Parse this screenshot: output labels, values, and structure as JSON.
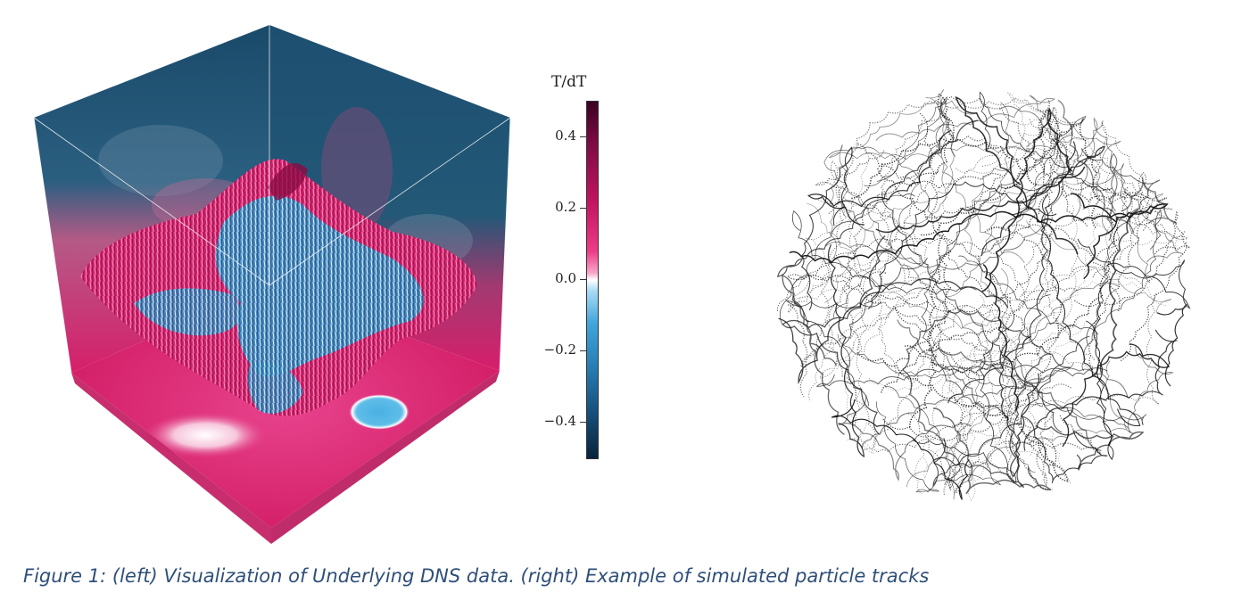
{
  "colorbar": {
    "title": "T/dT",
    "ticks": [
      {
        "value": 0.4,
        "label": "0.4"
      },
      {
        "value": 0.2,
        "label": "0.2"
      },
      {
        "value": 0.0,
        "label": "0.0"
      },
      {
        "value": -0.2,
        "label": "−0.2"
      },
      {
        "value": -0.4,
        "label": "−0.4"
      }
    ],
    "range": [
      -0.5,
      0.5
    ],
    "colors": {
      "max": "#3a0320",
      "positive": "#c2145f",
      "zero": "#ffffff",
      "negative": "#2478ad",
      "min": "#08233a"
    }
  },
  "figures": {
    "left": "cube-volume-visualization",
    "right": "particle-tracks-plot"
  },
  "caption": "Figure 1: (left) Visualization of Underlying DNS data. (right) Example of simulated particle tracks"
}
